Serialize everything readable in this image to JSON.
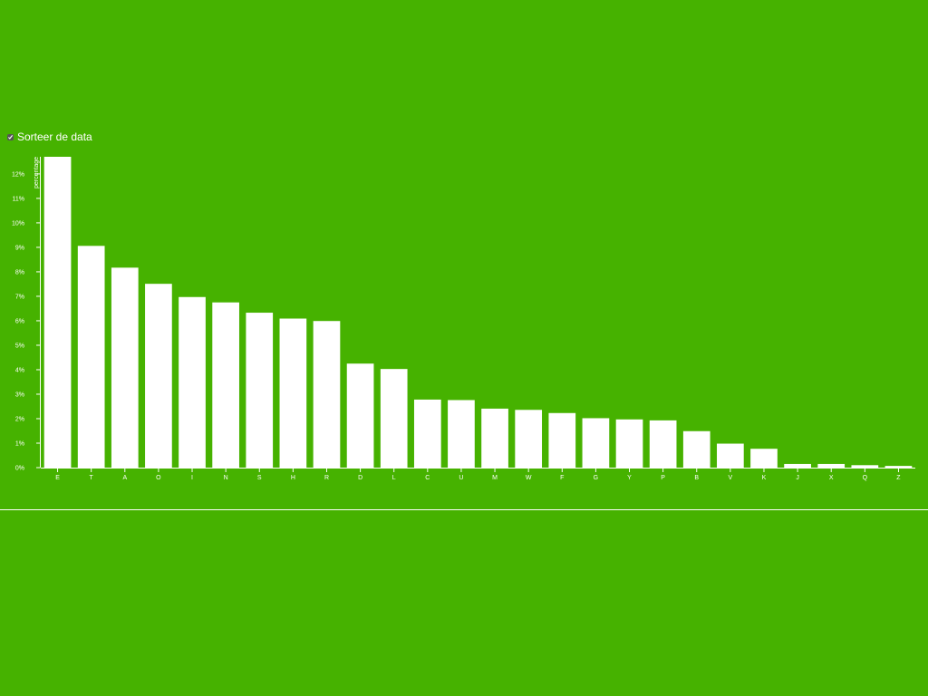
{
  "controls": {
    "sort_label": "Sorteer de data",
    "sort_checked": true
  },
  "colors": {
    "background": "#46b200",
    "bar": "#ffffff",
    "axis": "#ffffff"
  },
  "chart_data": {
    "type": "bar",
    "ylabel": "percentage",
    "ylim": [
      0,
      12.7
    ],
    "yticks": [
      "0%",
      "1%",
      "2%",
      "3%",
      "4%",
      "5%",
      "6%",
      "7%",
      "8%",
      "9%",
      "10%",
      "11%",
      "12%"
    ],
    "categories": [
      "E",
      "T",
      "A",
      "O",
      "I",
      "N",
      "S",
      "H",
      "R",
      "D",
      "L",
      "C",
      "U",
      "M",
      "W",
      "F",
      "G",
      "Y",
      "P",
      "B",
      "V",
      "K",
      "J",
      "X",
      "Q",
      "Z"
    ],
    "values": [
      12.7,
      9.06,
      8.17,
      7.51,
      6.97,
      6.75,
      6.33,
      6.09,
      5.99,
      4.25,
      4.03,
      2.78,
      2.76,
      2.41,
      2.36,
      2.23,
      2.02,
      1.97,
      1.93,
      1.49,
      0.98,
      0.77,
      0.15,
      0.15,
      0.1,
      0.07
    ]
  }
}
